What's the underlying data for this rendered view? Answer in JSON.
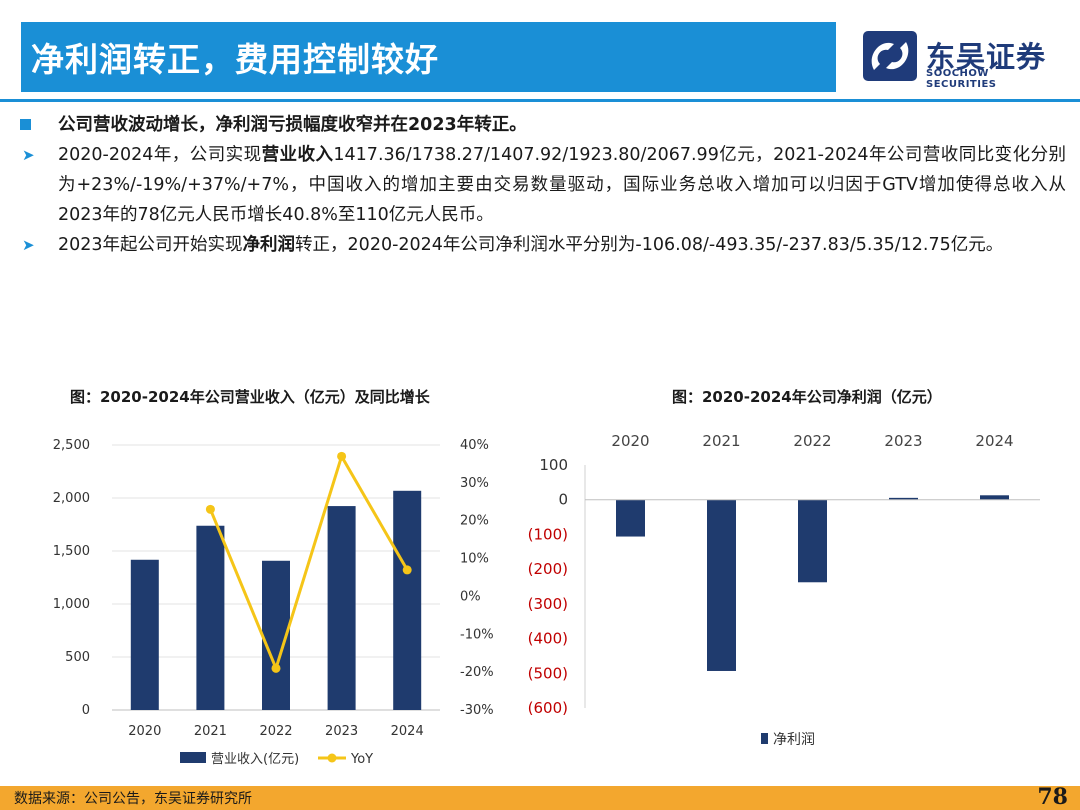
{
  "header": {
    "title": "净利润转正，费用控制较好",
    "logo_cn": "东吴证券",
    "logo_en": "SOOCHOW SECURITIES"
  },
  "bullets": [
    {
      "lead": "公司营收波动增长，净利润亏损幅度收窄并在2023年转正。"
    },
    {
      "pre": "2020-2024年，公司实现",
      "bold": "营业收入",
      "post": "1417.36/1738.27/1407.92/1923.80/2067.99亿元，2021-2024年公司营收同比变化分别为+23%/-19%/+37%/+7%，中国收入的增加主要由交易数量驱动，国际业务总收入增加可以归因于GTV增加使得总收入从2023年的78亿元人民币增长40.8%至110亿元人民币。"
    },
    {
      "pre": "2023年起公司开始实现",
      "bold": "净利润",
      "post": "转正，2020-2024年公司净利润水平分别为-106.08/-493.35/-237.83/5.35/12.75亿元。"
    }
  ],
  "chart_data": [
    {
      "type": "bar",
      "title": "图：2020-2024年公司营业收入（亿元）及同比增长",
      "categories": [
        "2020",
        "2021",
        "2022",
        "2023",
        "2024"
      ],
      "series": [
        {
          "name": "营业收入(亿元)",
          "type": "bar",
          "axis": "left",
          "values": [
            1417.36,
            1738.27,
            1407.92,
            1923.8,
            2067.99
          ]
        },
        {
          "name": "YoY",
          "type": "line",
          "axis": "right",
          "values": [
            null,
            23,
            -19,
            37,
            7
          ]
        }
      ],
      "ylim": [
        0,
        2500
      ],
      "yticks": [
        "0",
        "500",
        "1,000",
        "1,500",
        "2,000",
        "2,500"
      ],
      "y2lim": [
        -30,
        40
      ],
      "y2ticks": [
        "-30%",
        "-20%",
        "-10%",
        "0%",
        "10%",
        "20%",
        "30%",
        "40%"
      ],
      "legend": "bottom",
      "colors": {
        "bar": "#1f3b6e",
        "line": "#f5c518"
      }
    },
    {
      "type": "bar",
      "title": "图：2020-2024年公司净利润（亿元）",
      "categories": [
        "2020",
        "2021",
        "2022",
        "2023",
        "2024"
      ],
      "series": [
        {
          "name": "净利润",
          "values": [
            -106.08,
            -493.35,
            -237.83,
            5.35,
            12.75
          ]
        }
      ],
      "ylim": [
        -600,
        100
      ],
      "yticks": [
        "100",
        "0",
        "(100)",
        "(200)",
        "(300)",
        "(400)",
        "(500)",
        "(600)"
      ],
      "legend": "bottom",
      "colors": {
        "bar": "#1f3b6e",
        "negative_tick": "#c00000"
      }
    }
  ],
  "footer": {
    "source": "数据来源：公司公告，东吴证券研究所",
    "page": "78"
  }
}
